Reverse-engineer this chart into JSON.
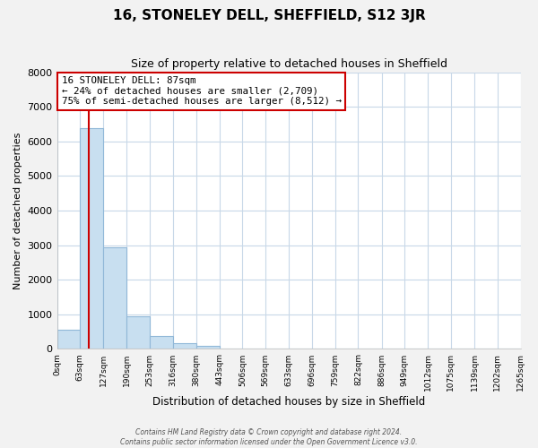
{
  "title": "16, STONELEY DELL, SHEFFIELD, S12 3JR",
  "subtitle": "Size of property relative to detached houses in Sheffield",
  "xlabel": "Distribution of detached houses by size in Sheffield",
  "ylabel": "Number of detached properties",
  "bin_edges": [
    0,
    63,
    127,
    190,
    253,
    316,
    380,
    443,
    506,
    569,
    633,
    696,
    759,
    822,
    886,
    949,
    1012,
    1075,
    1139,
    1202,
    1265
  ],
  "bin_labels": [
    "0sqm",
    "63sqm",
    "127sqm",
    "190sqm",
    "253sqm",
    "316sqm",
    "380sqm",
    "443sqm",
    "506sqm",
    "569sqm",
    "633sqm",
    "696sqm",
    "759sqm",
    "822sqm",
    "886sqm",
    "949sqm",
    "1012sqm",
    "1075sqm",
    "1139sqm",
    "1202sqm",
    "1265sqm"
  ],
  "counts": [
    560,
    6380,
    2950,
    950,
    370,
    175,
    90,
    0,
    0,
    0,
    0,
    0,
    0,
    0,
    0,
    0,
    0,
    0,
    0,
    0
  ],
  "bar_color": "#c8dff0",
  "bar_edge_color": "#91b8d8",
  "property_line_x": 87,
  "property_line_color": "#cc0000",
  "annotation_title": "16 STONELEY DELL: 87sqm",
  "annotation_line2": "← 24% of detached houses are smaller (2,709)",
  "annotation_line3": "75% of semi-detached houses are larger (8,512) →",
  "annotation_box_facecolor": "#ffffff",
  "annotation_box_edgecolor": "#cc0000",
  "ylim": [
    0,
    8000
  ],
  "yticks": [
    0,
    1000,
    2000,
    3000,
    4000,
    5000,
    6000,
    7000,
    8000
  ],
  "footer_line1": "Contains HM Land Registry data © Crown copyright and database right 2024.",
  "footer_line2": "Contains public sector information licensed under the Open Government Licence v3.0.",
  "background_color": "#f2f2f2",
  "plot_background_color": "#ffffff",
  "grid_color": "#c8d8e8"
}
